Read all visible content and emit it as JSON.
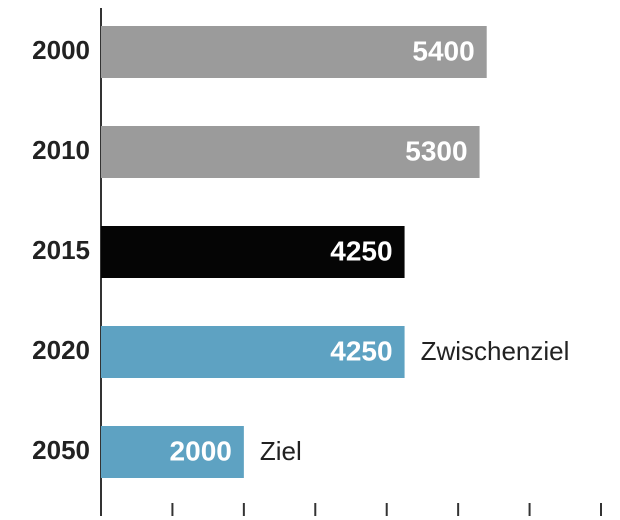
{
  "chart_data": {
    "type": "barh",
    "categories": [
      "2000",
      "2010",
      "2015",
      "2020",
      "2050"
    ],
    "values": [
      5400,
      5300,
      4250,
      4250,
      2000
    ],
    "colors": [
      "#9b9b9b",
      "#9b9b9b",
      "#050505",
      "#5ea2c2",
      "#5ea2c2"
    ],
    "annotations": [
      null,
      null,
      null,
      "Zwischenziel",
      "Ziel"
    ],
    "xlim": [
      0,
      7000
    ],
    "xticks": [
      0,
      1000,
      2000,
      3000,
      4000,
      5000,
      6000,
      7000
    ]
  }
}
